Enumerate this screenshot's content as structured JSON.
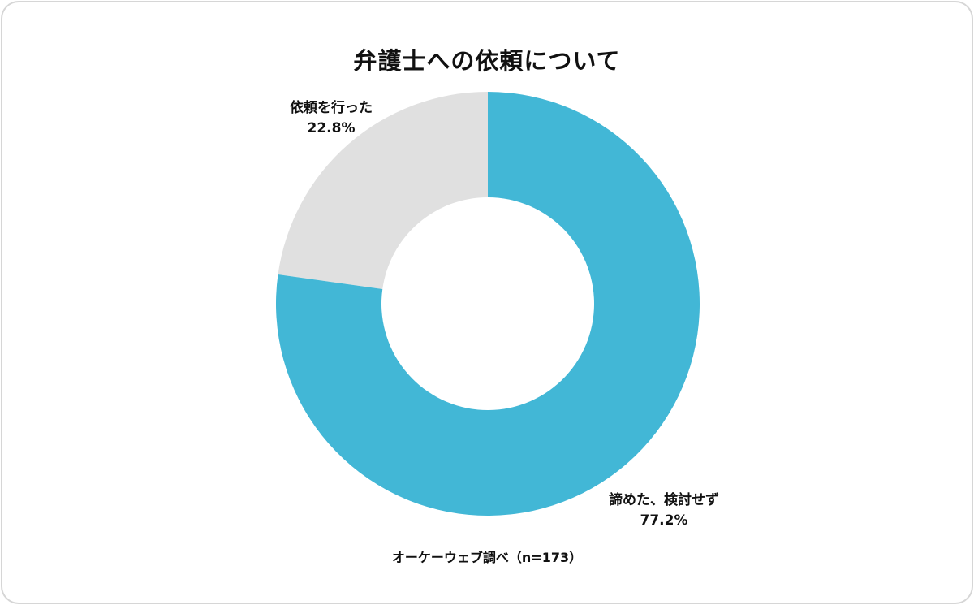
{
  "chart_data": {
    "type": "pie",
    "title": "弁護士への依頼について",
    "source": "オーケーウェブ調べ（n=173）",
    "slices": [
      {
        "label": "依頼を行った",
        "value_text": "22.8%",
        "value": 22.8,
        "color": "#e0e0e0"
      },
      {
        "label": "諦めた、検討せず",
        "value_text": "77.2%",
        "value": 77.2,
        "color": "#42b7d6"
      }
    ],
    "start_angle_deg": 0,
    "direction": "counterclockwise"
  }
}
